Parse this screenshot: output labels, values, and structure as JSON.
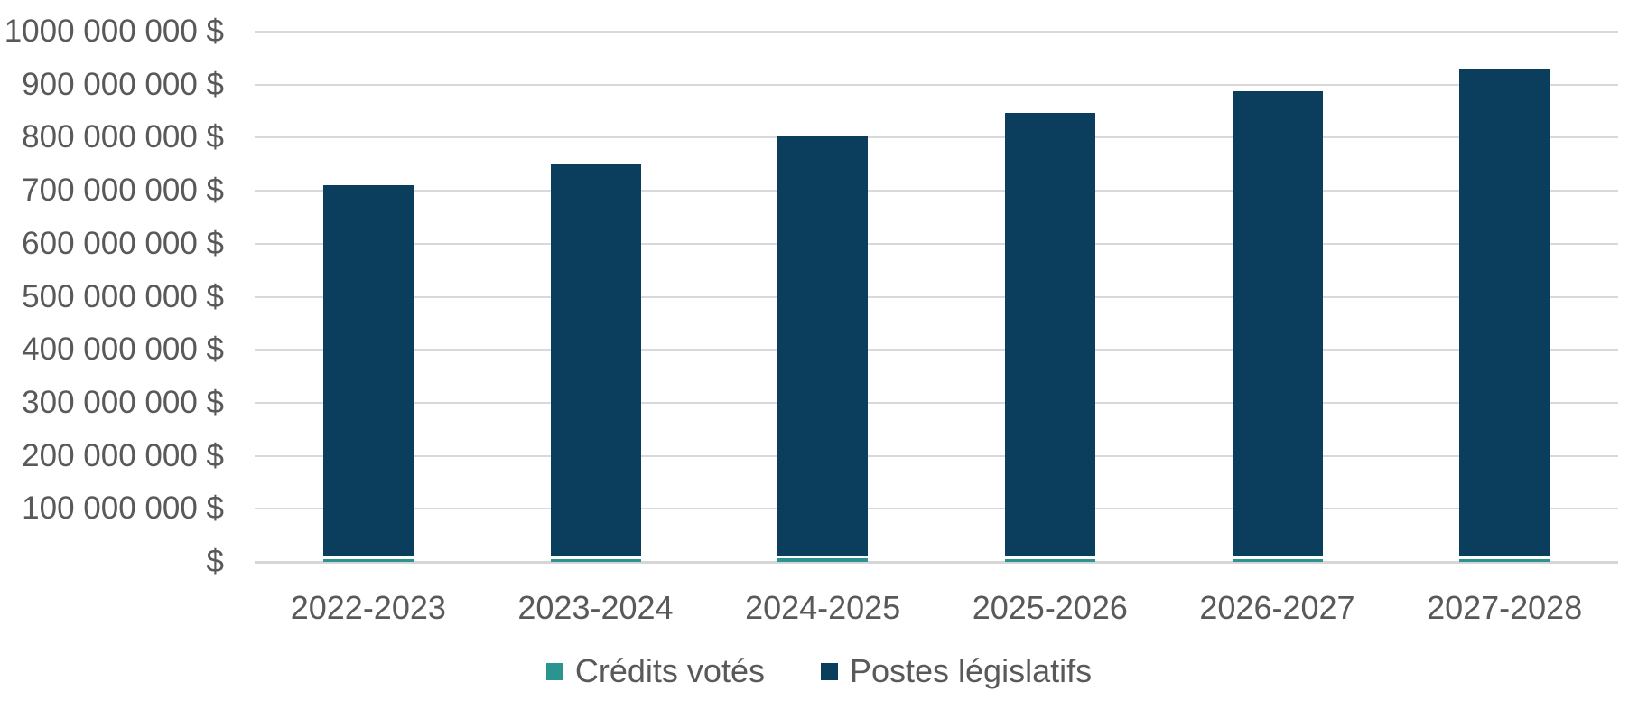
{
  "chart_data": {
    "type": "bar",
    "stacked": true,
    "title": "",
    "xlabel": "",
    "ylabel": "",
    "categories": [
      "2022-2023",
      "2023-2024",
      "2024-2025",
      "2025-2026",
      "2026-2027",
      "2027-2028"
    ],
    "series": [
      {
        "name": "Crédits votés",
        "color": "#2b9490",
        "values": [
          11000000,
          11000000,
          12000000,
          11000000,
          11000000,
          11000000
        ]
      },
      {
        "name": "Postes législatifs",
        "color": "#0b3d5c",
        "values": [
          699000000,
          739000000,
          791000000,
          835000000,
          877000000,
          919000000
        ]
      }
    ],
    "y_axis": {
      "min": 0,
      "max": 1000000000,
      "tick_step": 100000000,
      "ticks": [
        {
          "label": "1000 000 000 $",
          "value": 1000000000
        },
        {
          "label": "900 000 000 $",
          "value": 900000000
        },
        {
          "label": "800 000 000 $",
          "value": 800000000
        },
        {
          "label": "700 000 000 $",
          "value": 700000000
        },
        {
          "label": "600 000 000 $",
          "value": 600000000
        },
        {
          "label": "500 000 000 $",
          "value": 500000000
        },
        {
          "label": "400 000 000 $",
          "value": 400000000
        },
        {
          "label": "300 000 000 $",
          "value": 300000000
        },
        {
          "label": "200 000 000 $",
          "value": 200000000
        },
        {
          "label": "100 000 000 $",
          "value": 100000000
        },
        {
          "label": "$",
          "value": 0
        }
      ]
    },
    "legend": {
      "position": "bottom",
      "entries": [
        "Crédits votés",
        "Postes législatifs"
      ]
    },
    "grid": true,
    "colors": {
      "gridline": "#d9d9d9",
      "axis_line": "#d6d6d6",
      "text": "#595959",
      "background": "#ffffff",
      "segment_separator": "#ffffff"
    }
  }
}
